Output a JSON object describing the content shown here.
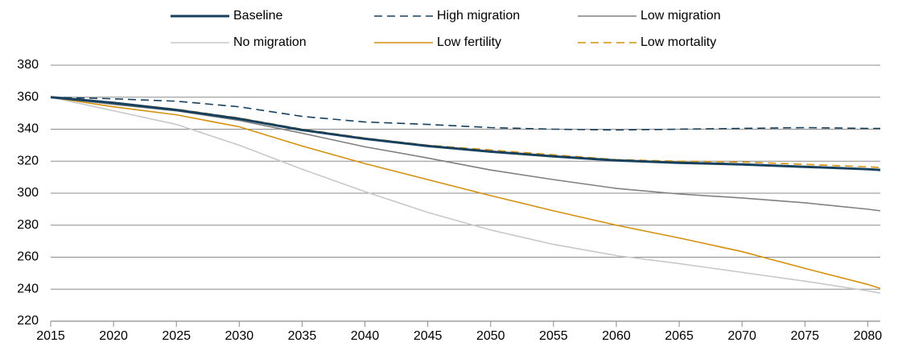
{
  "chart_data": {
    "type": "line",
    "x": [
      2015,
      2020,
      2025,
      2030,
      2035,
      2040,
      2045,
      2050,
      2055,
      2060,
      2065,
      2070,
      2075,
      2080,
      2081
    ],
    "series": [
      {
        "name": "Baseline",
        "color": "#17405e",
        "dash": false,
        "width": 3,
        "values": [
          360,
          356.5,
          352,
          346.5,
          339.5,
          334,
          329.5,
          326,
          323,
          320.5,
          319,
          318,
          316.5,
          315,
          314.5
        ]
      },
      {
        "name": "High migration",
        "color": "#17405e",
        "dash": true,
        "width": 1.6,
        "values": [
          360,
          359,
          357.5,
          354,
          348,
          344.5,
          343,
          341,
          340,
          339.5,
          340,
          340.5,
          341,
          340.5,
          340.5
        ]
      },
      {
        "name": "Low migration",
        "color": "#808080",
        "dash": false,
        "width": 1.6,
        "values": [
          360,
          355.5,
          351.5,
          345.5,
          337.5,
          329,
          322,
          314.5,
          308.5,
          303,
          299.5,
          297,
          294,
          290,
          289
        ]
      },
      {
        "name": "No migration",
        "color": "#c8c8c8",
        "dash": false,
        "width": 1.6,
        "values": [
          360,
          351.5,
          343,
          330,
          315,
          301,
          288,
          277,
          268,
          261,
          256,
          250.5,
          245,
          239,
          237.5
        ]
      },
      {
        "name": "Low fertility",
        "color": "#d4900f",
        "dash": false,
        "width": 1.6,
        "values": [
          360,
          354,
          349,
          341.5,
          329.5,
          318.5,
          308.5,
          298.5,
          289,
          280,
          272,
          263.5,
          253,
          243,
          240.5
        ]
      },
      {
        "name": "Low mortality",
        "color": "#d4900f",
        "dash": true,
        "width": 1.6,
        "values": [
          360,
          356.5,
          352.5,
          347,
          340,
          334.5,
          330,
          327,
          324,
          321,
          320,
          319.5,
          318,
          316.5,
          316
        ]
      }
    ],
    "xlim": [
      2015,
      2081
    ],
    "xticks": [
      2015,
      2020,
      2025,
      2030,
      2035,
      2040,
      2045,
      2050,
      2055,
      2060,
      2065,
      2070,
      2075,
      2080
    ],
    "ylim": [
      220,
      380
    ],
    "yticks": [
      220,
      240,
      260,
      280,
      300,
      320,
      340,
      360,
      380
    ],
    "grid": true
  }
}
